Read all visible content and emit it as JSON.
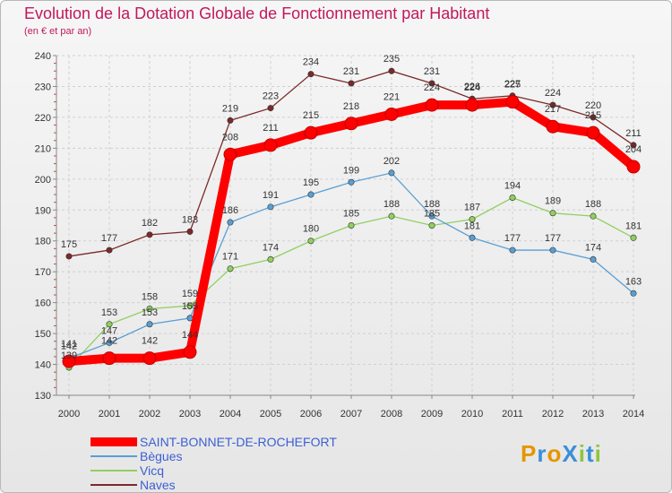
{
  "header": {
    "title": "Evolution de la Dotation Globale de Fonctionnement par Habitant",
    "subtitle": "(en € et par an)"
  },
  "logo": {
    "text": "ProXiti",
    "colors": [
      "#e69500",
      "#3a8fd8",
      "#e69500",
      "#3a8fd8",
      "#8dc63f",
      "#3a8fd8",
      "#8dc63f"
    ]
  },
  "chart_data": {
    "type": "line",
    "title": "Evolution de la Dotation Globale de Fonctionnement par Habitant",
    "xlabel": "",
    "ylabel": "(en € et par an)",
    "ylim": [
      130,
      240
    ],
    "yticks": [
      130,
      140,
      150,
      160,
      170,
      180,
      190,
      200,
      210,
      220,
      230,
      240
    ],
    "categories": [
      "2000",
      "2001",
      "2002",
      "2003",
      "2004",
      "2005",
      "2006",
      "2007",
      "2008",
      "2009",
      "2010",
      "2011",
      "2012",
      "2013",
      "2014"
    ],
    "legend_position": "bottom-left",
    "series": [
      {
        "name": "Naves",
        "color": "#7a2a2a",
        "emphasis": false,
        "values": [
          175,
          177,
          182,
          183,
          219,
          223,
          234,
          231,
          235,
          231,
          226,
          227,
          224,
          220,
          211
        ],
        "labels": [
          "175",
          "177",
          "182",
          "183",
          "219",
          "223",
          "234",
          "231",
          "235",
          "231",
          "226",
          "227",
          "224",
          "220",
          "211"
        ]
      },
      {
        "name": "Vicq",
        "color": "#90d060",
        "emphasis": false,
        "values": [
          139,
          153,
          158,
          159,
          171,
          174,
          180,
          185,
          188,
          185,
          187,
          194,
          189,
          188,
          181
        ],
        "labels": [
          "139",
          "153",
          "158",
          "159",
          "171",
          "174",
          "180",
          "185",
          "188",
          "185",
          "187",
          "194",
          "189",
          "188",
          "181"
        ]
      },
      {
        "name": "Bègues",
        "color": "#5a9fd4",
        "emphasis": false,
        "values": [
          142,
          147,
          153,
          155,
          186,
          191,
          195,
          199,
          202,
          188,
          181,
          177,
          177,
          174,
          163
        ],
        "labels": [
          "142",
          "147",
          "153",
          "155",
          "186",
          "191",
          "195",
          "199",
          "202",
          "188",
          "181",
          "177",
          "177",
          "174",
          "163"
        ]
      },
      {
        "name": "SAINT-BONNET-DE-ROCHEFORT",
        "color": "#ff0000",
        "emphasis": true,
        "values": [
          141,
          142,
          142,
          144,
          208,
          211,
          215,
          218,
          221,
          224,
          224,
          225,
          217,
          215,
          204
        ],
        "labels": [
          "141",
          "142",
          "142",
          "144",
          "208",
          "211",
          "215",
          "218",
          "221",
          "224",
          "224",
          "225",
          "217",
          "215",
          "204"
        ]
      }
    ],
    "legend_order": [
      "SAINT-BONNET-DE-ROCHEFORT",
      "Bègues",
      "Vicq",
      "Naves"
    ]
  }
}
